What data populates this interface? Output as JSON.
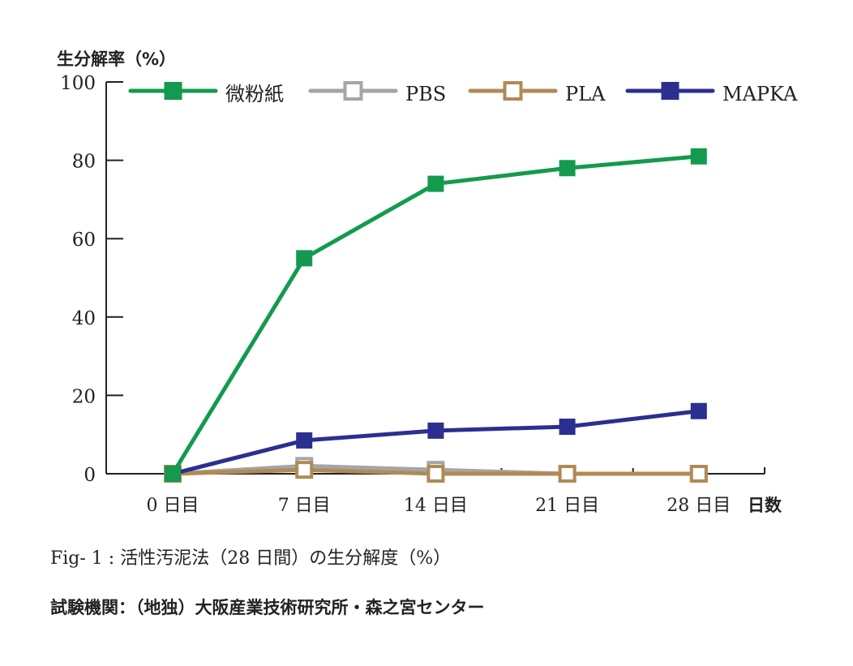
{
  "chart_data": {
    "type": "line",
    "ylabel": "生分解率（%）",
    "xlabel": "日数",
    "categories": [
      "0 日目",
      "7 日目",
      "14 日目",
      "21 日目",
      "28 日目"
    ],
    "x": [
      0,
      7,
      14,
      21,
      28
    ],
    "ylim": [
      0,
      100
    ],
    "yticks": [
      0,
      20,
      40,
      60,
      80,
      100
    ],
    "ytick_labels": [
      "0",
      "20",
      "40",
      "60",
      "80",
      "100"
    ],
    "grid": false,
    "legend_position": "top",
    "series": [
      {
        "name": "微粉紙",
        "color": "#149a4f",
        "marker": "filled-square",
        "values": [
          0,
          55,
          74,
          78,
          81
        ]
      },
      {
        "name": "PBS",
        "color": "#a5a5a5",
        "marker": "open-square",
        "values": [
          0,
          2,
          1,
          0,
          0
        ]
      },
      {
        "name": "PLA",
        "color": "#b08a55",
        "marker": "open-square",
        "values": [
          0,
          1,
          0,
          0,
          0
        ]
      },
      {
        "name": "MAPKA",
        "color": "#2b2f8f",
        "marker": "filled-square",
        "values": [
          0,
          8.5,
          11,
          12,
          16
        ]
      }
    ]
  },
  "captions": {
    "figure": "Fig- 1 : 活性汚泥法（28 日間）の生分解度（%）",
    "institution": "試験機関：（地独）大阪産業技術研究所・森之宮センター"
  }
}
